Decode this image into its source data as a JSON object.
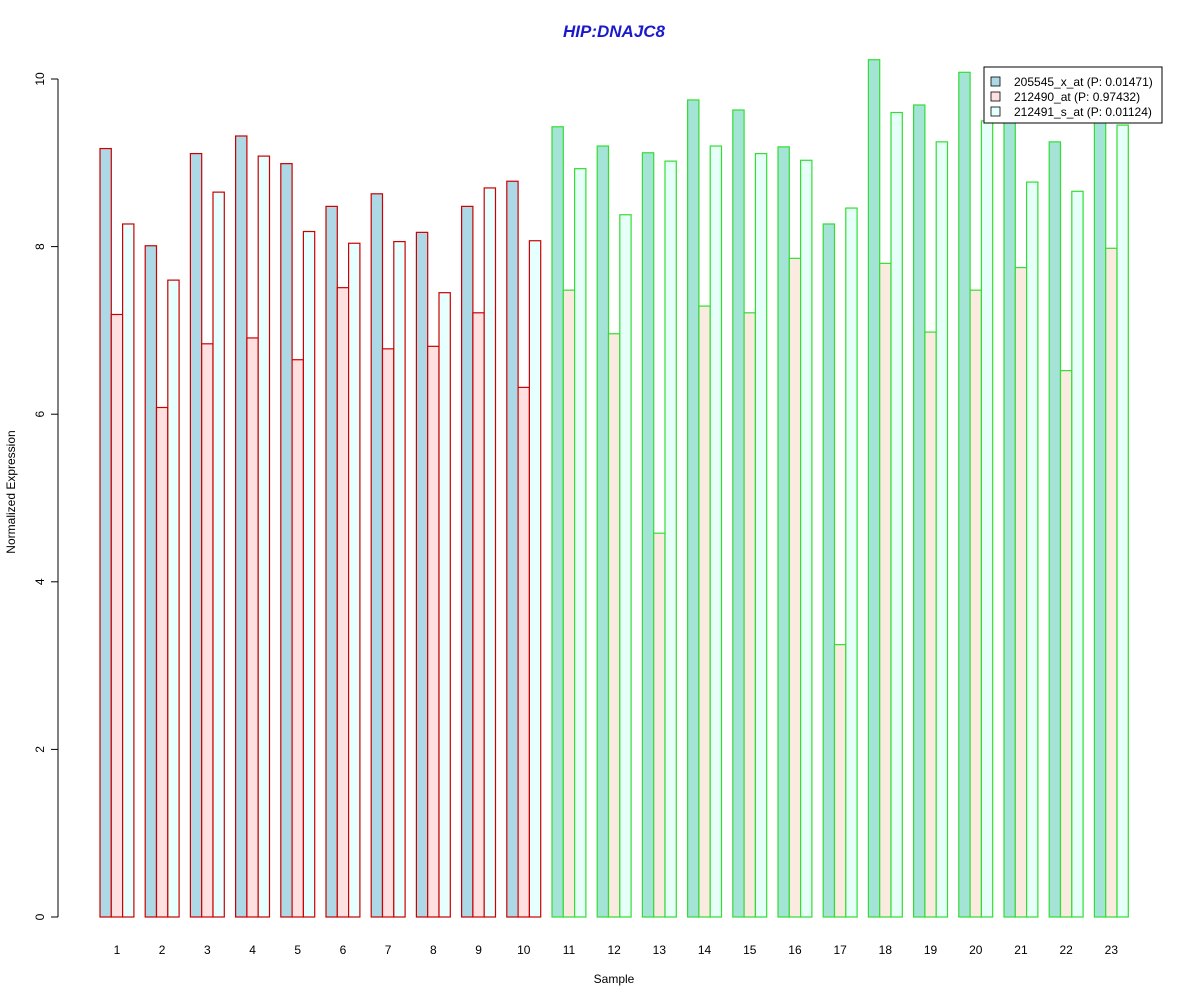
{
  "chart_data": {
    "type": "bar",
    "title": "HIP:DNAJC8",
    "xlabel": "Sample",
    "ylabel": "Normalized Expression",
    "ylim": [
      0,
      10.5
    ],
    "yticks": [
      0,
      2,
      4,
      6,
      8,
      10
    ],
    "categories": [
      "1",
      "2",
      "3",
      "4",
      "5",
      "6",
      "7",
      "8",
      "9",
      "10",
      "11",
      "12",
      "13",
      "14",
      "15",
      "16",
      "17",
      "18",
      "19",
      "20",
      "21",
      "22",
      "23"
    ],
    "groups": [
      {
        "name": "",
        "indices": [
          0,
          1,
          2,
          3,
          4,
          5,
          6,
          7,
          8,
          9
        ],
        "border_color": "#cc0000"
      },
      {
        "name": "",
        "indices": [
          10,
          11,
          12,
          13,
          14,
          15,
          16,
          17,
          18,
          19,
          20,
          21,
          22
        ],
        "border_color": "#33dd33"
      }
    ],
    "series": [
      {
        "name": "205545_x_at (P: 0.01471)",
        "fill_group1": "#add8e6",
        "fill_group2": "#a3e4d7",
        "values": [
          9.17,
          8.01,
          9.11,
          9.32,
          8.99,
          8.48,
          8.63,
          8.17,
          8.48,
          8.78,
          9.43,
          9.2,
          9.12,
          9.75,
          9.63,
          9.19,
          8.27,
          10.23,
          9.69,
          10.08,
          9.55,
          9.25,
          9.6
        ]
      },
      {
        "name": "212490_at (P: 0.97432)",
        "fill_group1": "#ffe0e0",
        "fill_group2": "#fbeadf",
        "values": [
          7.19,
          6.08,
          6.84,
          6.91,
          6.65,
          7.51,
          6.78,
          6.81,
          7.21,
          6.32,
          7.48,
          6.96,
          4.58,
          7.29,
          7.21,
          7.86,
          3.25,
          7.8,
          6.98,
          7.48,
          7.75,
          6.52,
          7.98
        ]
      },
      {
        "name": "212491_s_at (P: 0.01124)",
        "fill_group1": "#e6ffff",
        "fill_group2": "#e6fff8",
        "values": [
          8.27,
          7.6,
          8.65,
          9.08,
          8.18,
          8.04,
          8.06,
          7.45,
          8.7,
          8.07,
          8.93,
          8.38,
          9.02,
          9.2,
          9.11,
          9.03,
          8.46,
          9.6,
          9.25,
          9.5,
          8.77,
          8.66,
          9.45
        ]
      }
    ],
    "legend": {
      "placement": "top-right",
      "swatch_colors": [
        "#add8e6",
        "#ffe0e0",
        "#e6ffff"
      ]
    },
    "title_color": "#1a1acc",
    "grid": false
  }
}
